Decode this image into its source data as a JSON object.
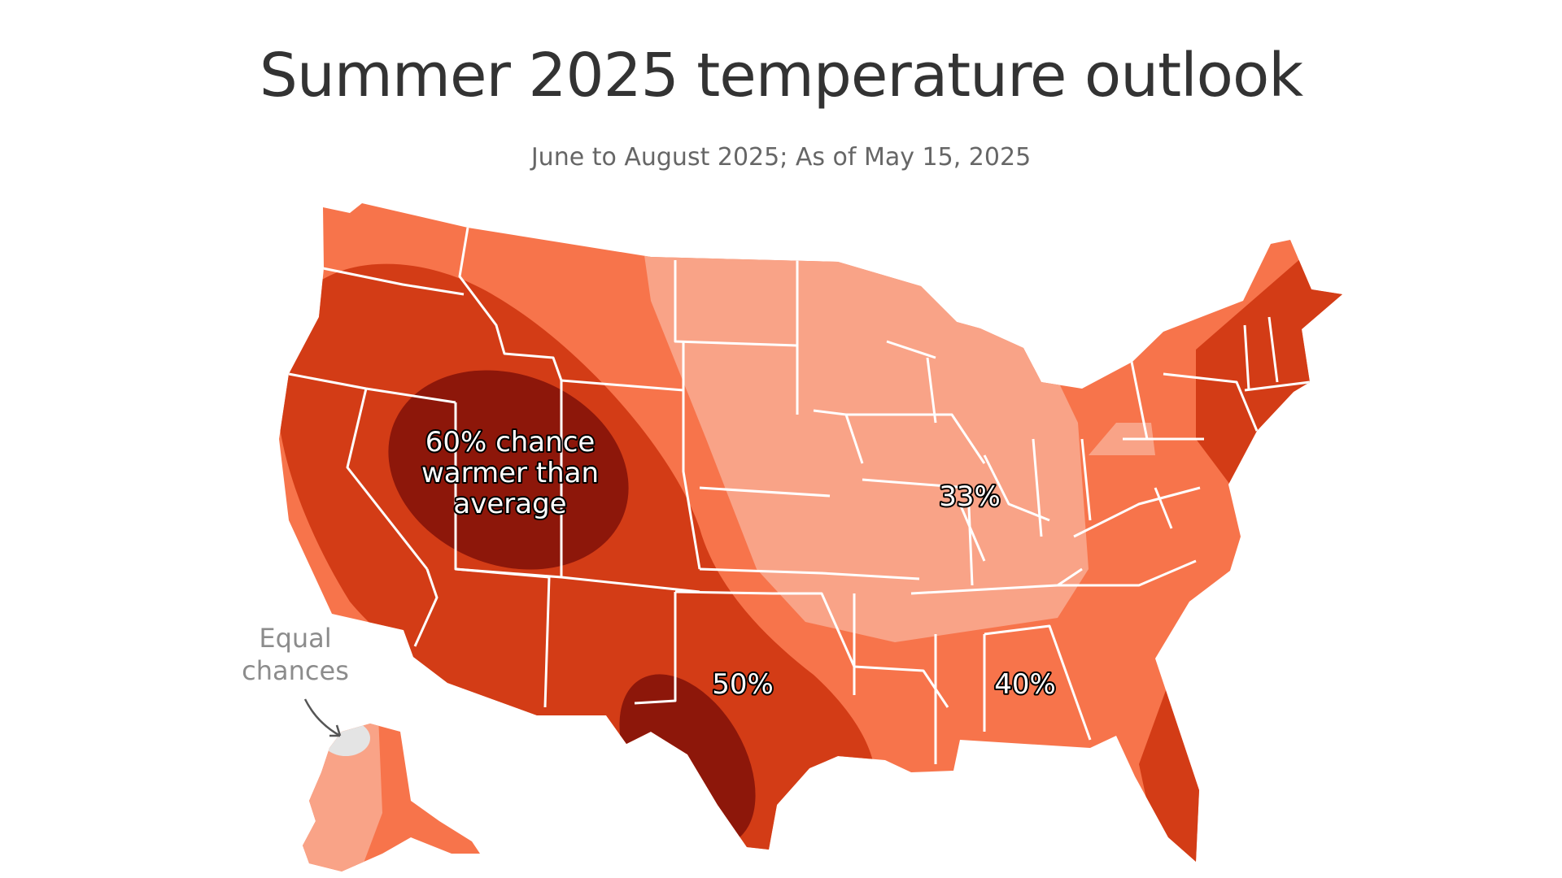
{
  "title": "Summer 2025 temperature outlook",
  "subtitle": "June to August 2025; As of May 15, 2025",
  "colors": {
    "pct33": "#f9a387",
    "pct40": "#f7744b",
    "pct50": "#d33c16",
    "pct60": "#8d170a",
    "equal_chances": "#e4e4e4",
    "borders": "#ffffff"
  },
  "labels": {
    "sixty_line1": "60% chance",
    "sixty_line2": "warmer than",
    "sixty_line3": "average",
    "fifty": "50%",
    "forty": "40%",
    "thirtythree": "33%"
  },
  "callout": {
    "line1": "Equal",
    "line2": "chances"
  }
}
